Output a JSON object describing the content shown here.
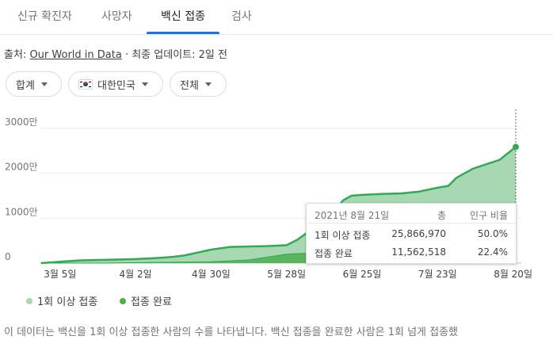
{
  "tabs": [
    {
      "label": "신규 확진자",
      "active": false
    },
    {
      "label": "사망자",
      "active": false
    },
    {
      "label": "백신 접종",
      "active": true
    },
    {
      "label": "검사",
      "active": false
    }
  ],
  "source": {
    "prefix": "출처:",
    "link": "Our World in Data",
    "suffix": "· 최종 업데이트: 2일 전"
  },
  "filters": {
    "metric": "합계",
    "region": "대한민국",
    "range": "전체"
  },
  "tooltip": {
    "date": "2021년 8월 21일",
    "col_total": "총",
    "col_ratio": "인구 비율",
    "rows": [
      {
        "label": "1회 이상 접종",
        "total": "25,866,970",
        "ratio": "50.0%"
      },
      {
        "label": "접종 완료",
        "total": "11,562,518",
        "ratio": "22.4%"
      }
    ]
  },
  "legend": {
    "first_dose": "1회 이상 접종",
    "fully": "접종 완료"
  },
  "colors": {
    "first_dose": "#a8d8b1",
    "fully": "#4caf50",
    "accent": "#1a73e8"
  },
  "footnote": "이 데이터는 백신을 1회 이상 접종한 사람의 수를 나타냅니다. 백신 접종을 완료한 사람은 1회 넘게 접종했",
  "chart_data": {
    "type": "area",
    "y_tick_labels": [
      "0",
      "1000만",
      "2000만",
      "3000만"
    ],
    "ylim": [
      0,
      30000000
    ],
    "x_tick_labels": [
      "3월 5일",
      "4월 2일",
      "4월 30일",
      "5월 28일",
      "6월 25일",
      "7월 23일",
      "8월 20일"
    ],
    "series": [
      {
        "name": "1회 이상 접종",
        "points": [
          [
            "2021-02-26",
            0
          ],
          [
            "2021-03-05",
            300000
          ],
          [
            "2021-03-12",
            600000
          ],
          [
            "2021-03-19",
            700000
          ],
          [
            "2021-03-26",
            800000
          ],
          [
            "2021-04-02",
            900000
          ],
          [
            "2021-04-09",
            1100000
          ],
          [
            "2021-04-16",
            1400000
          ],
          [
            "2021-04-20",
            1700000
          ],
          [
            "2021-04-30",
            3000000
          ],
          [
            "2021-05-07",
            3600000
          ],
          [
            "2021-05-14",
            3700000
          ],
          [
            "2021-05-21",
            3800000
          ],
          [
            "2021-05-28",
            4000000
          ],
          [
            "2021-06-01",
            5200000
          ],
          [
            "2021-06-04",
            6500000
          ],
          [
            "2021-06-10",
            9000000
          ],
          [
            "2021-06-14",
            11000000
          ],
          [
            "2021-06-18",
            14000000
          ],
          [
            "2021-06-21",
            15000000
          ],
          [
            "2021-06-25",
            15200000
          ],
          [
            "2021-07-02",
            15400000
          ],
          [
            "2021-07-09",
            15500000
          ],
          [
            "2021-07-16",
            15900000
          ],
          [
            "2021-07-23",
            16800000
          ],
          [
            "2021-07-27",
            17200000
          ],
          [
            "2021-07-30",
            19000000
          ],
          [
            "2021-08-05",
            21000000
          ],
          [
            "2021-08-10",
            22000000
          ],
          [
            "2021-08-15",
            23000000
          ],
          [
            "2021-08-21",
            25866970
          ]
        ]
      },
      {
        "name": "접종 완료",
        "points": [
          [
            "2021-02-26",
            0
          ],
          [
            "2021-03-19",
            0
          ],
          [
            "2021-04-02",
            100000
          ],
          [
            "2021-04-30",
            300000
          ],
          [
            "2021-05-14",
            700000
          ],
          [
            "2021-05-28",
            2000000
          ],
          [
            "2021-06-04",
            2200000
          ],
          [
            "2021-06-14",
            3000000
          ],
          [
            "2021-06-25",
            4000000
          ],
          [
            "2021-07-09",
            4800000
          ],
          [
            "2021-07-23",
            6000000
          ],
          [
            "2021-08-05",
            8000000
          ],
          [
            "2021-08-14",
            9800000
          ],
          [
            "2021-08-21",
            11562518
          ]
        ]
      }
    ],
    "highlight_date": "2021-08-21",
    "grid": true
  }
}
